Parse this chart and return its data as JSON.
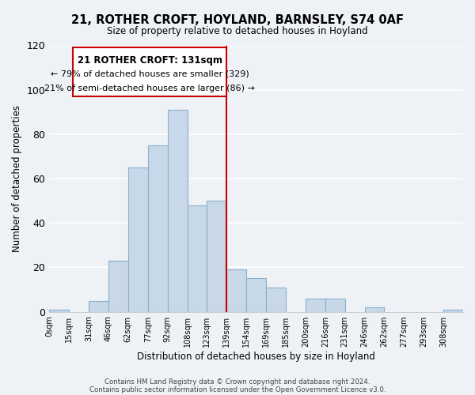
{
  "title": "21, ROTHER CROFT, HOYLAND, BARNSLEY, S74 0AF",
  "subtitle": "Size of property relative to detached houses in Hoyland",
  "xlabel": "Distribution of detached houses by size in Hoyland",
  "ylabel": "Number of detached properties",
  "bin_labels": [
    "0sqm",
    "15sqm",
    "31sqm",
    "46sqm",
    "62sqm",
    "77sqm",
    "92sqm",
    "108sqm",
    "123sqm",
    "139sqm",
    "154sqm",
    "169sqm",
    "185sqm",
    "200sqm",
    "216sqm",
    "231sqm",
    "246sqm",
    "262sqm",
    "277sqm",
    "293sqm",
    "308sqm"
  ],
  "bar_heights": [
    1,
    0,
    5,
    23,
    65,
    75,
    91,
    48,
    50,
    19,
    15,
    11,
    0,
    6,
    6,
    0,
    2,
    0,
    0,
    0,
    1
  ],
  "bar_color": "#c8d8e8",
  "bar_edge_color": "#8ab0cc",
  "vline_x_index": 9,
  "vline_color": "#cc0000",
  "annotation_title": "21 ROTHER CROFT: 131sqm",
  "annotation_line1": "← 79% of detached houses are smaller (329)",
  "annotation_line2": "21% of semi-detached houses are larger (86) →",
  "annotation_box_color": "#ffffff",
  "annotation_box_edge": "#cc0000",
  "ylim": [
    0,
    120
  ],
  "yticks": [
    0,
    20,
    40,
    60,
    80,
    100,
    120
  ],
  "footer1": "Contains HM Land Registry data © Crown copyright and database right 2024.",
  "footer2": "Contains public sector information licensed under the Open Government Licence v3.0.",
  "background_color": "#eef2f7"
}
